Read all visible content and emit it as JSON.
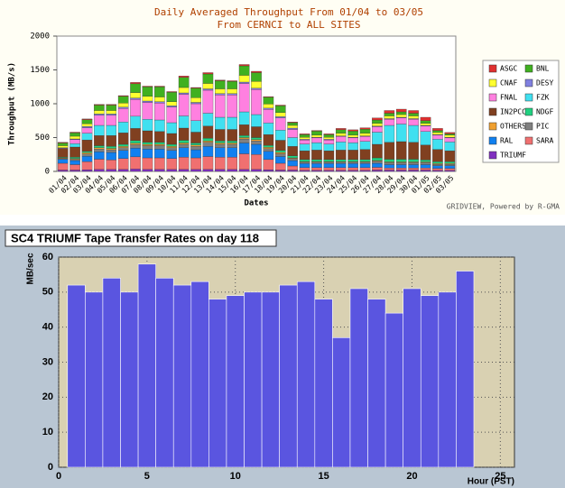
{
  "chart_data": [
    {
      "type": "stacked-bar",
      "title": "Daily Averaged Throughput From 01/04 to 03/05",
      "subtitle": "From CERNCI to ALL SITES",
      "y_label": "Throughput (MB/s)",
      "x_label": "Dates",
      "footer": "GRIDVIEW, Powered by R-GMA",
      "categories": [
        "01/04",
        "02/04",
        "03/04",
        "04/04",
        "05/04",
        "06/04",
        "07/04",
        "08/04",
        "09/04",
        "10/04",
        "11/04",
        "12/04",
        "13/04",
        "14/04",
        "15/04",
        "16/04",
        "17/04",
        "18/04",
        "19/04",
        "20/04",
        "21/04",
        "22/04",
        "23/04",
        "24/04",
        "25/04",
        "26/04",
        "27/04",
        "28/04",
        "29/04",
        "30/04",
        "01/05",
        "02/05",
        "03/05"
      ],
      "ylim": [
        0,
        2000
      ],
      "yticks": [
        0,
        500,
        1000,
        1500,
        2000
      ],
      "series": [
        {
          "name": "ASGC",
          "color": "#e03030",
          "values": [
            10,
            10,
            10,
            10,
            10,
            10,
            20,
            10,
            10,
            10,
            20,
            10,
            20,
            10,
            10,
            20,
            20,
            10,
            10,
            10,
            10,
            10,
            10,
            20,
            20,
            20,
            30,
            40,
            40,
            40,
            50,
            30,
            20
          ]
        },
        {
          "name": "BNL",
          "color": "#40b020",
          "values": [
            40,
            50,
            60,
            80,
            80,
            100,
            130,
            140,
            150,
            140,
            150,
            140,
            140,
            120,
            110,
            140,
            130,
            100,
            100,
            40,
            40,
            60,
            40,
            50,
            60,
            60,
            50,
            40,
            40,
            40,
            40,
            30,
            20
          ]
        },
        {
          "name": "CNAF",
          "color": "#ffff30",
          "values": [
            30,
            40,
            40,
            50,
            50,
            60,
            80,
            70,
            70,
            60,
            80,
            70,
            80,
            70,
            70,
            100,
            100,
            60,
            60,
            40,
            30,
            30,
            30,
            40,
            30,
            40,
            40,
            40,
            40,
            40,
            30,
            30,
            30
          ]
        },
        {
          "name": "DESY",
          "color": "#8080e0",
          "values": [
            10,
            10,
            20,
            20,
            20,
            20,
            20,
            20,
            20,
            20,
            20,
            20,
            20,
            20,
            20,
            20,
            20,
            20,
            20,
            20,
            10,
            10,
            10,
            10,
            10,
            10,
            10,
            10,
            10,
            10,
            10,
            10,
            10
          ]
        },
        {
          "name": "FNAL",
          "color": "#ff80e0",
          "values": [
            0,
            60,
            80,
            150,
            150,
            200,
            250,
            250,
            250,
            230,
            320,
            250,
            340,
            330,
            330,
            420,
            370,
            200,
            180,
            120,
            60,
            70,
            60,
            80,
            70,
            70,
            80,
            90,
            90,
            90,
            80,
            60,
            60
          ]
        },
        {
          "name": "FZK",
          "color": "#40e0f0",
          "values": [
            0,
            50,
            100,
            150,
            150,
            160,
            180,
            170,
            170,
            160,
            180,
            170,
            190,
            180,
            180,
            190,
            180,
            170,
            150,
            130,
            100,
            110,
            100,
            120,
            110,
            120,
            180,
            250,
            260,
            250,
            200,
            150,
            130
          ]
        },
        {
          "name": "IN2PCC",
          "color": "#804020",
          "values": [
            130,
            150,
            170,
            150,
            160,
            170,
            180,
            170,
            160,
            160,
            180,
            160,
            180,
            170,
            170,
            160,
            160,
            160,
            150,
            140,
            130,
            140,
            130,
            140,
            140,
            150,
            200,
            250,
            260,
            250,
            220,
            180,
            160
          ]
        },
        {
          "name": "NDGF",
          "color": "#20d080",
          "values": [
            10,
            20,
            20,
            30,
            30,
            30,
            40,
            30,
            30,
            30,
            40,
            30,
            40,
            30,
            30,
            30,
            30,
            30,
            30,
            30,
            30,
            30,
            30,
            30,
            30,
            30,
            40,
            40,
            40,
            40,
            30,
            30,
            30
          ]
        },
        {
          "name": "OTHERS",
          "color": "#f0a030",
          "values": [
            10,
            10,
            20,
            20,
            20,
            20,
            20,
            20,
            20,
            20,
            20,
            20,
            20,
            20,
            20,
            20,
            20,
            20,
            20,
            10,
            10,
            10,
            10,
            10,
            10,
            10,
            10,
            10,
            10,
            10,
            10,
            10,
            10
          ]
        },
        {
          "name": "PIC",
          "color": "#808080",
          "values": [
            10,
            20,
            30,
            40,
            40,
            40,
            50,
            50,
            50,
            40,
            50,
            50,
            60,
            50,
            50,
            60,
            50,
            40,
            40,
            30,
            20,
            20,
            20,
            20,
            20,
            20,
            30,
            30,
            30,
            30,
            30,
            20,
            20
          ]
        },
        {
          "name": "RAL",
          "color": "#1080f0",
          "values": [
            60,
            60,
            80,
            110,
            110,
            120,
            130,
            130,
            130,
            120,
            140,
            120,
            150,
            140,
            140,
            160,
            150,
            120,
            100,
            80,
            60,
            60,
            60,
            60,
            60,
            60,
            60,
            50,
            50,
            50,
            50,
            40,
            40
          ]
        },
        {
          "name": "SARA",
          "color": "#f07070",
          "values": [
            100,
            80,
            120,
            150,
            140,
            160,
            180,
            170,
            170,
            160,
            180,
            170,
            190,
            180,
            180,
            230,
            220,
            150,
            100,
            60,
            40,
            40,
            40,
            40,
            40,
            40,
            40,
            30,
            30,
            30,
            30,
            30,
            30
          ]
        },
        {
          "name": "TRIUMF",
          "color": "#8030c0",
          "values": [
            20,
            20,
            25,
            30,
            30,
            30,
            35,
            30,
            30,
            30,
            30,
            30,
            30,
            30,
            30,
            30,
            30,
            25,
            20,
            20,
            15,
            15,
            15,
            15,
            15,
            15,
            20,
            20,
            20,
            20,
            20,
            15,
            15
          ]
        }
      ]
    },
    {
      "type": "histogram",
      "title": "SC4 TRIUMF Tape Transfer Rates on day 118",
      "y_label": "MB/sec",
      "x_label": "Hour (PST)",
      "bins": [
        0.5,
        1.5,
        2.5,
        3.5,
        4.5,
        5.5,
        6.5,
        7.5,
        8.5,
        9.5,
        10.5,
        11.5,
        12.5,
        13.5,
        14.5,
        15.5,
        16.5,
        17.5,
        18.5,
        19.5,
        20.5,
        21.5,
        22.5,
        23.5
      ],
      "values": [
        52,
        50,
        54,
        50,
        58,
        54,
        52,
        53,
        48,
        49,
        50,
        50,
        52,
        53,
        48,
        37,
        51,
        48,
        44,
        51,
        49,
        50,
        56
      ],
      "color": "#5a55e0",
      "xlim": [
        0,
        25.8
      ],
      "xticks": [
        0,
        5,
        10,
        15,
        20,
        25
      ],
      "ylim": [
        0,
        60
      ],
      "yticks": [
        0,
        10,
        20,
        30,
        40,
        50,
        60
      ],
      "grid": true
    }
  ]
}
